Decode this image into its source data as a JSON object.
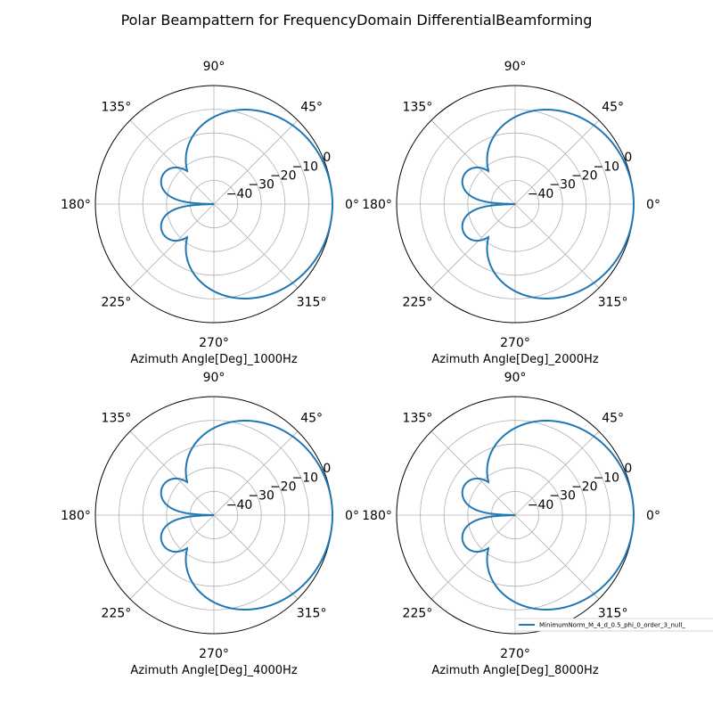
{
  "figure": {
    "suptitle": "Polar Beampattern for FrequencyDomain DifferentialBeamforming"
  },
  "colors": {
    "series": "#1f77b4",
    "grid": "#b0b0b0",
    "axis": "#000000"
  },
  "chart_data": [
    {
      "type": "line",
      "projection": "polar",
      "xlabel": "Azimuth Angle[Deg]_1000Hz",
      "theta_ticks": [
        "0°",
        "45°",
        "90°",
        "135°",
        "180°",
        "225°",
        "270°",
        "315°"
      ],
      "r_ticks": [
        "−40",
        "−30",
        "−20",
        "−10",
        "0"
      ],
      "r_tick_values": [
        -40,
        -30,
        -20,
        -10,
        0
      ],
      "rlim": [
        -50,
        0
      ],
      "grid": true,
      "pattern": "cardioid_dB_lobes"
    },
    {
      "type": "line",
      "projection": "polar",
      "xlabel": "Azimuth Angle[Deg]_2000Hz",
      "theta_ticks": [
        "0°",
        "45°",
        "90°",
        "135°",
        "180°",
        "225°",
        "270°",
        "315°"
      ],
      "r_ticks": [
        "−40",
        "−30",
        "−20",
        "−10",
        "0"
      ],
      "r_tick_values": [
        -40,
        -30,
        -20,
        -10,
        0
      ],
      "rlim": [
        -50,
        0
      ],
      "grid": true,
      "pattern": "cardioid_dB_lobes"
    },
    {
      "type": "line",
      "projection": "polar",
      "xlabel": "Azimuth Angle[Deg]_4000Hz",
      "theta_ticks": [
        "0°",
        "45°",
        "90°",
        "135°",
        "180°",
        "225°",
        "270°",
        "315°"
      ],
      "r_ticks": [
        "−40",
        "−30",
        "−20",
        "−10",
        "0"
      ],
      "r_tick_values": [
        -40,
        -30,
        -20,
        -10,
        0
      ],
      "rlim": [
        -50,
        0
      ],
      "grid": true,
      "pattern": "cardioid_dB_lobes"
    },
    {
      "type": "line",
      "projection": "polar",
      "xlabel": "Azimuth Angle[Deg]_8000Hz",
      "theta_ticks": [
        "0°",
        "45°",
        "90°",
        "135°",
        "180°",
        "225°",
        "270°",
        "315°"
      ],
      "r_ticks": [
        "−40",
        "−30",
        "−20",
        "−10",
        "0"
      ],
      "r_tick_values": [
        -40,
        -30,
        -20,
        -10,
        0
      ],
      "rlim": [
        -50,
        0
      ],
      "grid": true,
      "pattern": "cardioid_dB_lobes"
    }
  ],
  "legend": {
    "label": "MinimumNorm_M_4_d_0.5_phi_0_order_3_null_",
    "placement": "bottom-right"
  }
}
